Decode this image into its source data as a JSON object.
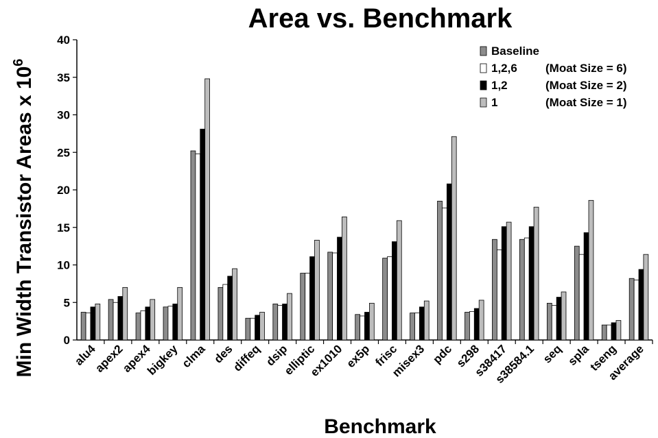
{
  "chart_data": {
    "type": "bar",
    "title": "Area vs. Benchmark",
    "xlabel": "Benchmark",
    "ylabel": "Min Width Transistor Areas x 10",
    "ylabel_exponent": "6",
    "ylim": [
      0,
      40
    ],
    "yticks": [
      "0",
      "5",
      "10",
      "15",
      "20",
      "25",
      "30",
      "35",
      "40"
    ],
    "grid": false,
    "legend_position": "top-right",
    "categories": [
      "alu4",
      "apex2",
      "apex4",
      "bigkey",
      "clma",
      "des",
      "diffeq",
      "dsip",
      "elliptic",
      "ex1010",
      "ex5p",
      "frisc",
      "misex3",
      "pdc",
      "s298",
      "s38417",
      "s38584.1",
      "seq",
      "spla",
      "tseng",
      "average"
    ],
    "series": [
      {
        "name": "Baseline",
        "legend_key": "Baseline",
        "legend_note": "",
        "color": "#8c8c8c",
        "values": [
          3.7,
          5.4,
          3.6,
          4.4,
          25.2,
          7.0,
          2.9,
          4.8,
          8.9,
          11.7,
          3.4,
          10.9,
          3.6,
          18.5,
          3.7,
          13.4,
          13.4,
          4.9,
          12.5,
          2.0,
          8.2
        ]
      },
      {
        "name": "1,2,6 (Moat Size = 6)",
        "legend_key": "1,2,6",
        "legend_note": "(Moat Size = 6)",
        "color": "#ffffff",
        "values": [
          3.6,
          5.0,
          3.9,
          4.5,
          24.8,
          7.4,
          2.9,
          4.6,
          8.9,
          11.6,
          3.2,
          11.1,
          3.6,
          17.6,
          3.8,
          12.0,
          13.6,
          4.6,
          11.4,
          2.0,
          8.0
        ]
      },
      {
        "name": "1,2 (Moat Size = 2)",
        "legend_key": "1,2",
        "legend_note": "(Moat Size = 2)",
        "color": "#000000",
        "values": [
          4.4,
          5.8,
          4.4,
          4.8,
          28.1,
          8.5,
          3.3,
          4.8,
          11.1,
          13.7,
          3.7,
          13.1,
          4.4,
          20.8,
          4.2,
          15.1,
          15.1,
          5.7,
          14.3,
          2.3,
          9.4
        ]
      },
      {
        "name": "1 (Moat Size = 1)",
        "legend_key": "1",
        "legend_note": "(Moat Size = 1)",
        "color": "#bdbdbd",
        "values": [
          4.8,
          7.0,
          5.4,
          7.0,
          34.8,
          9.5,
          3.7,
          6.2,
          13.3,
          16.4,
          4.9,
          15.9,
          5.2,
          27.1,
          5.3,
          15.7,
          17.7,
          6.4,
          18.6,
          2.6,
          11.4
        ]
      }
    ]
  }
}
